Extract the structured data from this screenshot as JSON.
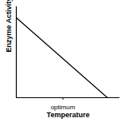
{
  "chart_data": {
    "type": "line",
    "x_label": "Temperature",
    "y_label": "Enzyme Activity",
    "x": [
      0,
      88
    ],
    "values": [
      88,
      0
    ],
    "color": "#000000",
    "xlim": [
      0,
      100
    ],
    "ylim": [
      0,
      100
    ],
    "xticks": [
      {
        "value": 45,
        "label": "optimum"
      }
    ],
    "tick_labels": "x"
  }
}
